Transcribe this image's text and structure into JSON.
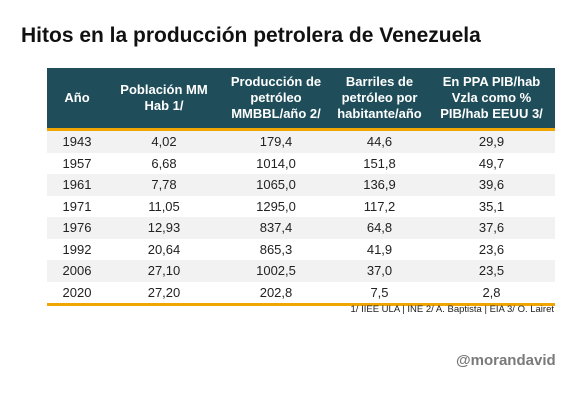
{
  "chart_data": {
    "type": "table",
    "title": "Hitos en la producción petrolera de Venezuela",
    "columns": [
      "Año",
      "Población MM Hab 1/",
      "Producción de petróleo MMBBL/año 2/",
      "Barriles de petróleo por habitante/año",
      "En PPA PIB/hab Vzla como % PIB/hab EEUU 3/"
    ],
    "rows": [
      [
        "1943",
        "4,02",
        "179,4",
        "44,6",
        "29,9"
      ],
      [
        "1957",
        "6,68",
        "1014,0",
        "151,8",
        "49,7"
      ],
      [
        "1961",
        "7,78",
        "1065,0",
        "136,9",
        "39,6"
      ],
      [
        "1971",
        "11,05",
        "1295,0",
        "117,2",
        "35,1"
      ],
      [
        "1976",
        "12,93",
        "837,4",
        "64,8",
        "37,6"
      ],
      [
        "1992",
        "20,64",
        "865,3",
        "41,9",
        "23,6"
      ],
      [
        "2006",
        "27,10",
        "1002,5",
        "37,0",
        "23,5"
      ],
      [
        "2020",
        "27,20",
        "202,8",
        "7,5",
        "2,8"
      ]
    ],
    "footnote": "1/ IIEE ULA | INE  2/ A. Baptista  | EIA  3/ O. Lairet"
  },
  "colors": {
    "header_bg": "#1f4e5a",
    "accent_line": "#f0a500",
    "stripe": "#f2f2f2"
  },
  "handle": "@morandavid"
}
